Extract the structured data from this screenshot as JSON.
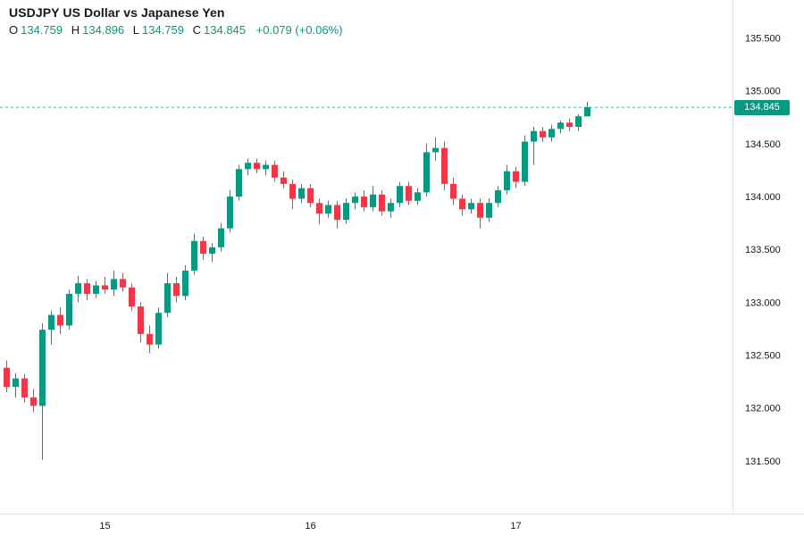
{
  "header": {
    "title": "USDJPY US Dollar vs Japanese Yen",
    "ohlc": {
      "o_label": "O",
      "o": "134.759",
      "h_label": "H",
      "h": "134.896",
      "l_label": "L",
      "l": "134.759",
      "c_label": "C",
      "c": "134.845",
      "change": "+0.079 (+0.06%)"
    }
  },
  "colors": {
    "up": "#089981",
    "down": "#f23645",
    "text": "#131722",
    "axis_text": "#131722",
    "grid": "#e0e3eb",
    "background": "#ffffff"
  },
  "chart_data": {
    "type": "candlestick",
    "title": "USDJPY US Dollar vs Japanese Yen",
    "symbol": "USDJPY",
    "last_ohlc": {
      "open": 134.759,
      "high": 134.896,
      "low": 134.759,
      "close": 134.845,
      "change": 0.079,
      "change_pct": 0.06
    },
    "price_axis_ticks": [
      "135.500",
      "135.000",
      "134.500",
      "134.000",
      "133.500",
      "133.000",
      "132.500",
      "132.000",
      "131.500"
    ],
    "time_axis_labels": [
      {
        "label": "15",
        "index": 11
      },
      {
        "label": "16",
        "index": 34
      },
      {
        "label": "17",
        "index": 57
      }
    ],
    "y_range": [
      131.0,
      135.86
    ],
    "current_price": 134.845,
    "current_price_str": "134.845",
    "candles": [
      [
        132.38,
        132.45,
        132.15,
        132.2
      ],
      [
        132.2,
        132.33,
        132.1,
        132.28
      ],
      [
        132.28,
        132.32,
        132.05,
        132.1
      ],
      [
        132.1,
        132.18,
        131.96,
        132.02
      ],
      [
        132.02,
        132.8,
        131.51,
        132.74
      ],
      [
        132.74,
        132.92,
        132.6,
        132.88
      ],
      [
        132.88,
        132.95,
        132.7,
        132.78
      ],
      [
        132.78,
        133.12,
        132.74,
        133.08
      ],
      [
        133.08,
        133.25,
        133.0,
        133.18
      ],
      [
        133.18,
        133.22,
        133.02,
        133.08
      ],
      [
        133.08,
        133.2,
        133.04,
        133.16
      ],
      [
        133.16,
        133.24,
        133.08,
        133.12
      ],
      [
        133.12,
        133.3,
        133.06,
        133.22
      ],
      [
        133.22,
        133.28,
        133.1,
        133.14
      ],
      [
        133.14,
        133.18,
        132.92,
        132.96
      ],
      [
        132.96,
        133.0,
        132.62,
        132.7
      ],
      [
        132.7,
        132.78,
        132.52,
        132.6
      ],
      [
        132.6,
        132.95,
        132.56,
        132.9
      ],
      [
        132.9,
        133.28,
        132.86,
        133.18
      ],
      [
        133.18,
        133.24,
        133.0,
        133.06
      ],
      [
        133.06,
        133.35,
        133.02,
        133.3
      ],
      [
        133.3,
        133.65,
        133.26,
        133.58
      ],
      [
        133.58,
        133.62,
        133.4,
        133.46
      ],
      [
        133.46,
        133.56,
        133.38,
        133.52
      ],
      [
        133.52,
        133.75,
        133.48,
        133.7
      ],
      [
        133.7,
        134.06,
        133.66,
        134.0
      ],
      [
        134.0,
        134.3,
        133.96,
        134.26
      ],
      [
        134.26,
        134.36,
        134.2,
        134.32
      ],
      [
        134.32,
        134.36,
        134.22,
        134.26
      ],
      [
        134.26,
        134.34,
        134.2,
        134.3
      ],
      [
        134.3,
        134.34,
        134.14,
        134.18
      ],
      [
        134.18,
        134.24,
        134.08,
        134.12
      ],
      [
        134.12,
        134.16,
        133.88,
        133.98
      ],
      [
        133.98,
        134.12,
        133.94,
        134.08
      ],
      [
        134.08,
        134.12,
        133.9,
        133.94
      ],
      [
        133.94,
        133.98,
        133.74,
        133.84
      ],
      [
        133.84,
        133.96,
        133.8,
        133.92
      ],
      [
        133.92,
        133.96,
        133.7,
        133.78
      ],
      [
        133.78,
        133.98,
        133.74,
        133.94
      ],
      [
        133.94,
        134.04,
        133.88,
        134.0
      ],
      [
        134.0,
        134.06,
        133.86,
        133.9
      ],
      [
        133.9,
        134.1,
        133.86,
        134.02
      ],
      [
        134.02,
        134.06,
        133.82,
        133.86
      ],
      [
        133.86,
        133.98,
        133.8,
        133.94
      ],
      [
        133.94,
        134.14,
        133.9,
        134.1
      ],
      [
        134.1,
        134.14,
        133.92,
        133.96
      ],
      [
        133.96,
        134.08,
        133.92,
        134.04
      ],
      [
        134.04,
        134.5,
        134.0,
        134.42
      ],
      [
        134.42,
        134.56,
        134.34,
        134.46
      ],
      [
        134.46,
        134.52,
        134.06,
        134.12
      ],
      [
        134.12,
        134.18,
        133.92,
        133.98
      ],
      [
        133.98,
        134.02,
        133.82,
        133.88
      ],
      [
        133.88,
        133.98,
        133.84,
        133.94
      ],
      [
        133.94,
        133.98,
        133.7,
        133.8
      ],
      [
        133.8,
        133.98,
        133.76,
        133.94
      ],
      [
        133.94,
        134.1,
        133.9,
        134.06
      ],
      [
        134.06,
        134.3,
        134.02,
        134.24
      ],
      [
        134.24,
        134.28,
        134.08,
        134.14
      ],
      [
        134.14,
        134.58,
        134.1,
        134.52
      ],
      [
        134.52,
        134.66,
        134.3,
        134.62
      ],
      [
        134.62,
        134.66,
        134.52,
        134.56
      ],
      [
        134.56,
        134.68,
        134.52,
        134.64
      ],
      [
        134.64,
        134.72,
        134.6,
        134.7
      ],
      [
        134.7,
        134.74,
        134.62,
        134.66
      ],
      [
        134.66,
        134.78,
        134.62,
        134.76
      ],
      [
        134.759,
        134.896,
        134.759,
        134.845
      ]
    ]
  }
}
